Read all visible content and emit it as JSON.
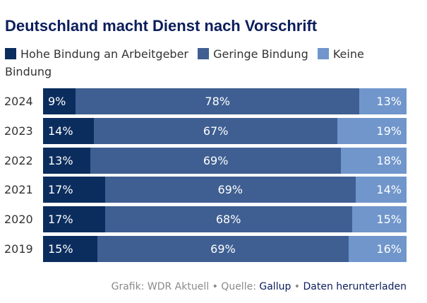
{
  "title": "Deutschland macht Dienst nach Vorschrift",
  "legend": [
    {
      "label": "Hohe Bindung an Arbeitgeber",
      "color": "#0b2d5e"
    },
    {
      "label": "Geringe Bindung",
      "color": "#3f5f92"
    },
    {
      "label": "Keine Bindung",
      "color": "#7096cc"
    }
  ],
  "footer": {
    "grafik_label": "Grafik: WDR Aktuell",
    "separator1": "•",
    "quelle_label": "Quelle:",
    "source_link": "Gallup",
    "separator2": "•",
    "download_link": "Daten herunterladen"
  },
  "chart_data": {
    "type": "bar",
    "orientation": "horizontal",
    "stacked": true,
    "categories": [
      "2024",
      "2023",
      "2022",
      "2021",
      "2020",
      "2019"
    ],
    "series": [
      {
        "name": "Hohe Bindung an Arbeitgeber",
        "values": [
          9,
          14,
          13,
          17,
          17,
          15
        ],
        "color": "#0b2d5e"
      },
      {
        "name": "Geringe Bindung",
        "values": [
          78,
          67,
          69,
          69,
          68,
          69
        ],
        "color": "#3f5f92"
      },
      {
        "name": "Keine Bindung",
        "values": [
          13,
          19,
          18,
          14,
          15,
          16
        ],
        "color": "#7096cc"
      }
    ],
    "value_suffix": "%",
    "xlim": [
      0,
      100
    ]
  }
}
